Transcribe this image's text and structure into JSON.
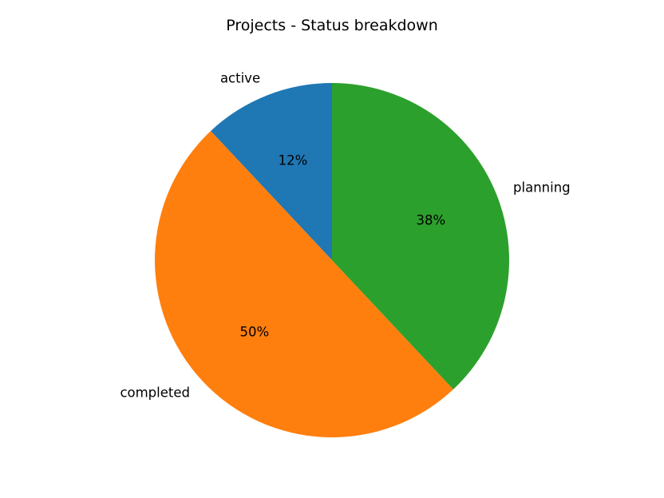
{
  "chart_data": {
    "type": "pie",
    "title": "Projects - Status breakdown",
    "slices": [
      {
        "label": "active",
        "value": 12,
        "pct_label": "12%",
        "color": "#1f77b4"
      },
      {
        "label": "completed",
        "value": 50,
        "pct_label": "50%",
        "color": "#ff7f0e"
      },
      {
        "label": "planning",
        "value": 38,
        "pct_label": "38%",
        "color": "#2ca02c"
      }
    ],
    "start_angle": 90,
    "direction": "counterclockwise",
    "legend": "none"
  }
}
